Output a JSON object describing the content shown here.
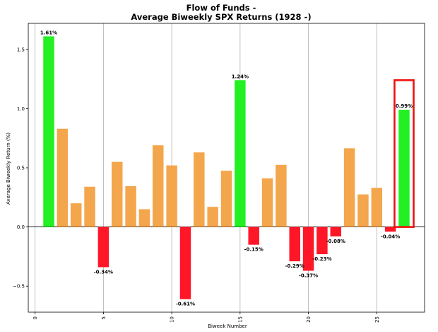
{
  "chart_data": {
    "type": "bar",
    "title_line1": "Flow of Funds -",
    "title_line2": "Average Biweekly SPX Returns (1928 -)",
    "xlabel": "Biweek Number",
    "ylabel": "Average Biweekly Return (%)",
    "xlim": [
      -0.5,
      28.5
    ],
    "ylim": [
      -0.72,
      1.72
    ],
    "xticks": [
      0,
      5,
      10,
      15,
      20,
      25
    ],
    "yticks": [
      -0.5,
      0.0,
      0.5,
      1.0,
      1.5
    ],
    "ytick_labels": [
      "−0.5",
      "0.0",
      "0.5",
      "1.0",
      "1.5"
    ],
    "grid": "x-only",
    "x": [
      1,
      2,
      3,
      4,
      5,
      6,
      7,
      8,
      9,
      10,
      11,
      12,
      13,
      14,
      15,
      16,
      17,
      18,
      19,
      20,
      21,
      22,
      23,
      24,
      25,
      26,
      27
    ],
    "values": [
      1.61,
      0.83,
      0.2,
      0.34,
      -0.34,
      0.55,
      0.345,
      0.15,
      0.69,
      0.52,
      -0.61,
      0.63,
      0.17,
      0.475,
      1.24,
      -0.15,
      0.41,
      0.525,
      -0.29,
      -0.37,
      -0.23,
      -0.08,
      0.665,
      0.275,
      0.33,
      -0.04,
      0.99
    ],
    "colors": [
      "#22f022",
      "#f4a64c",
      "#f4a64c",
      "#f4a64c",
      "#ff1728",
      "#f4a64c",
      "#f4a64c",
      "#f4a64c",
      "#f4a64c",
      "#f4a64c",
      "#ff1728",
      "#f4a64c",
      "#f4a64c",
      "#f4a64c",
      "#22f022",
      "#ff1728",
      "#f4a64c",
      "#f4a64c",
      "#ff1728",
      "#ff1728",
      "#ff1728",
      "#ff1728",
      "#f4a64c",
      "#f4a64c",
      "#f4a64c",
      "#ff1728",
      "#22f022"
    ],
    "data_labels": [
      {
        "x": 1,
        "value": 1.61,
        "text": "1.61%"
      },
      {
        "x": 5,
        "value": -0.34,
        "text": "-0.34%"
      },
      {
        "x": 11,
        "value": -0.61,
        "text": "-0.61%"
      },
      {
        "x": 15,
        "value": 1.24,
        "text": "1.24%"
      },
      {
        "x": 16,
        "value": -0.15,
        "text": "-0.15%"
      },
      {
        "x": 19,
        "value": -0.29,
        "text": "-0.29%"
      },
      {
        "x": 20,
        "value": -0.37,
        "text": "-0.37%"
      },
      {
        "x": 21,
        "value": -0.23,
        "text": "-0.23%"
      },
      {
        "x": 22,
        "value": -0.08,
        "text": "-0.08%"
      },
      {
        "x": 26,
        "value": -0.04,
        "text": "-0.04%"
      },
      {
        "x": 27,
        "value": 0.99,
        "text": "0.99%"
      }
    ],
    "highlight": {
      "x": 27,
      "ymin": 0.0,
      "ymax": 1.24,
      "color": "#ee1111"
    }
  }
}
